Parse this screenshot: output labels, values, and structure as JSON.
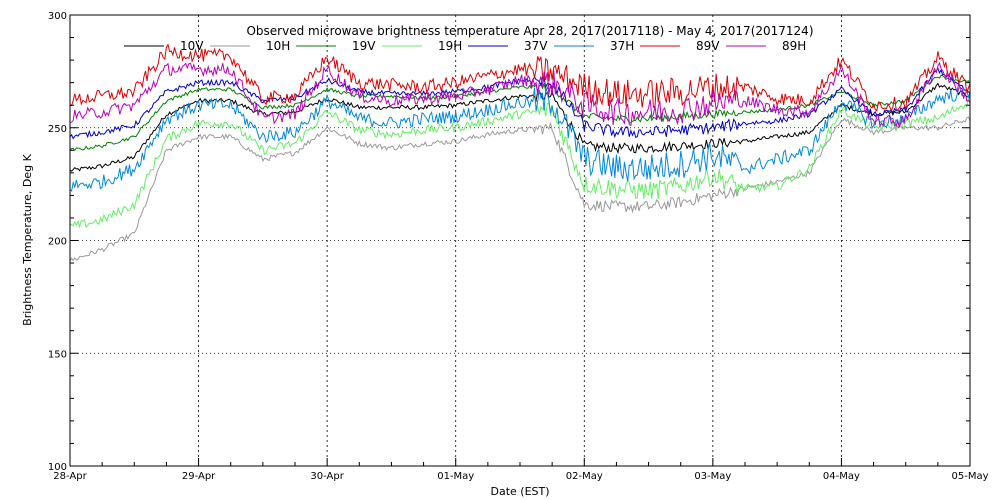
{
  "chart_data": {
    "type": "line",
    "title": "Observed microwave brightness temperature Apr 28, 2017(2017118) - May  4, 2017(2017124)",
    "xlabel": "Date (EST)",
    "ylabel": "Brightness Temperature, Deg K",
    "ylim": [
      100,
      300
    ],
    "xlim": [
      0,
      7
    ],
    "y_ticks": [
      100,
      150,
      200,
      250,
      300
    ],
    "x_tick_labels": [
      "28-Apr",
      "29-Apr",
      "30-Apr",
      "01-May",
      "02-May",
      "03-May",
      "04-May",
      "05-May"
    ],
    "grid": "dotted",
    "legend_position": "top",
    "x_day_positions": [
      0,
      0.25,
      0.5,
      0.75,
      1.0,
      1.25,
      1.5,
      1.75,
      2.0,
      2.25,
      2.5,
      2.75,
      3.0,
      3.25,
      3.5,
      3.75,
      4.0,
      4.25,
      4.5,
      4.75,
      5.0,
      5.25,
      5.5,
      5.75,
      6.0,
      6.25,
      6.5,
      6.75,
      7.0
    ],
    "series": [
      {
        "name": "10V",
        "color": "#000000",
        "noise": 1.0,
        "values": [
          231,
          233,
          237,
          256,
          262,
          262,
          256,
          257,
          263,
          259,
          259,
          259,
          260,
          262,
          264,
          264,
          242,
          241,
          241,
          242,
          243,
          244,
          246,
          248,
          260,
          256,
          257,
          269,
          264
        ]
      },
      {
        "name": "10H",
        "color": "#9a9a9a",
        "noise": 1.2,
        "values": [
          191,
          196,
          203,
          240,
          246,
          246,
          236,
          239,
          250,
          243,
          241,
          243,
          244,
          247,
          249,
          250,
          216,
          215,
          215,
          217,
          220,
          223,
          226,
          230,
          254,
          248,
          250,
          250,
          254
        ]
      },
      {
        "name": "19V",
        "color": "#008000",
        "noise": 0.8,
        "values": [
          240,
          242,
          246,
          262,
          267,
          267,
          259,
          260,
          267,
          264,
          264,
          263,
          264,
          266,
          268,
          268,
          255,
          254,
          254,
          255,
          256,
          257,
          258,
          260,
          266,
          260,
          262,
          273,
          270
        ]
      },
      {
        "name": "19H",
        "color": "#66ee66",
        "noise": 2.0,
        "values": [
          206,
          209,
          216,
          245,
          252,
          252,
          240,
          243,
          257,
          249,
          247,
          249,
          250,
          253,
          256,
          258,
          225,
          223,
          222,
          224,
          229,
          223,
          224,
          232,
          258,
          250,
          252,
          254,
          262
        ]
      },
      {
        "name": "37V",
        "color": "#0000cc",
        "noise": 1.2,
        "values": [
          246,
          248,
          251,
          266,
          270,
          270,
          262,
          263,
          271,
          266,
          265,
          265,
          266,
          268,
          271,
          270,
          251,
          248,
          248,
          249,
          250,
          252,
          253,
          256,
          267,
          256,
          258,
          276,
          265
        ]
      },
      {
        "name": "37H",
        "color": "#0088dd",
        "noise": 3.0,
        "values": [
          224,
          226,
          232,
          254,
          260,
          260,
          246,
          248,
          262,
          254,
          252,
          254,
          255,
          258,
          261,
          262,
          236,
          232,
          232,
          234,
          238,
          232,
          236,
          240,
          262,
          252,
          254,
          263,
          266
        ]
      },
      {
        "name": "89V",
        "color": "#dd0000",
        "noise": 3.0,
        "values": [
          262,
          264,
          266,
          284,
          282,
          282,
          263,
          264,
          281,
          270,
          269,
          268,
          270,
          273,
          276,
          275,
          268,
          265,
          265,
          266,
          268,
          268,
          263,
          262,
          280,
          260,
          261,
          281,
          267
        ]
      },
      {
        "name": "89H",
        "color": "#bb00bb",
        "noise": 2.8,
        "values": [
          255,
          257,
          260,
          276,
          276,
          276,
          254,
          256,
          276,
          264,
          262,
          263,
          264,
          267,
          271,
          270,
          260,
          257,
          257,
          258,
          261,
          262,
          258,
          257,
          276,
          253,
          253,
          278,
          262
        ]
      }
    ]
  }
}
